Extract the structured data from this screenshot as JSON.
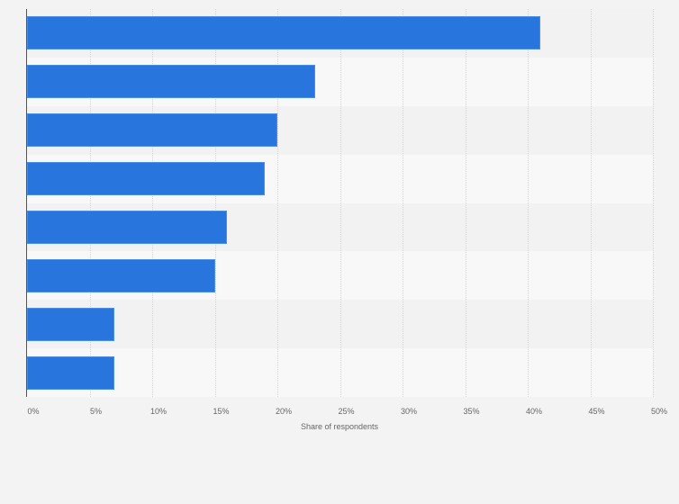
{
  "chart_data": {
    "type": "bar",
    "orientation": "horizontal",
    "title": "",
    "xlabel": "Share of respondents",
    "ylabel": "",
    "categories": [
      "",
      "",
      "",
      "",
      "",
      "",
      "",
      ""
    ],
    "values": [
      41,
      23,
      20,
      19,
      16,
      15,
      7,
      7
    ],
    "xlim": [
      0,
      50
    ],
    "ticks": [
      "0%",
      "5%",
      "10%",
      "15%",
      "20%",
      "25%",
      "30%",
      "35%",
      "40%",
      "45%",
      "50%"
    ],
    "grid": true,
    "legend": null,
    "bar_color": "#2876dd"
  }
}
